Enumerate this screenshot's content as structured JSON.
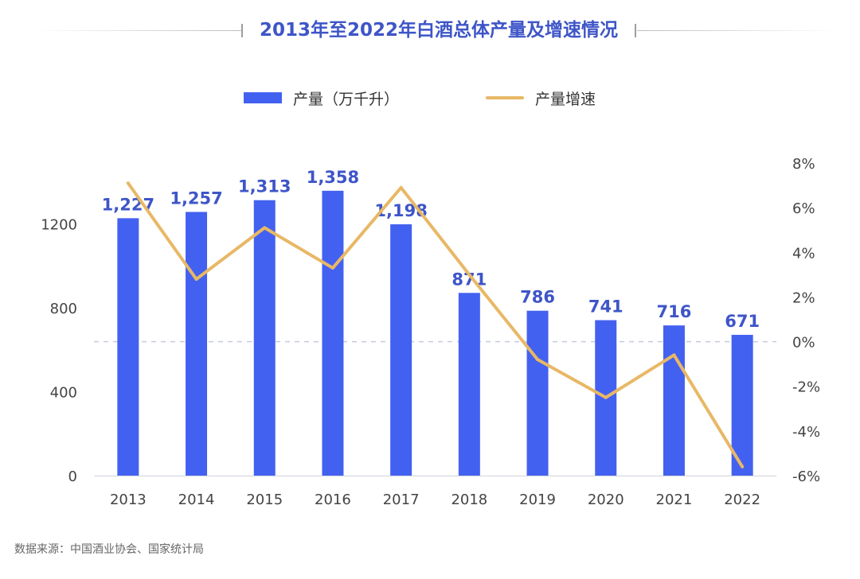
{
  "chart_data": {
    "type": "bar+line",
    "title": "2013年至2022年白酒总体产量及增速情况",
    "categories": [
      "2013",
      "2014",
      "2015",
      "2016",
      "2017",
      "2018",
      "2019",
      "2020",
      "2021",
      "2022"
    ],
    "series": [
      {
        "name": "产量（万千升）",
        "type": "bar",
        "axis": "left",
        "color": "#4361f0",
        "values": [
          1227,
          1257,
          1313,
          1358,
          1198,
          871,
          786,
          741,
          716,
          671
        ],
        "labels": [
          "1,227",
          "1,257",
          "1,313",
          "1,358",
          "1,198",
          "871",
          "786",
          "741",
          "716",
          "671"
        ]
      },
      {
        "name": "产量增速",
        "type": "line",
        "axis": "right",
        "color": "#e8b866",
        "values": [
          7.1,
          2.8,
          5.1,
          3.3,
          6.9,
          3.0,
          -0.8,
          -2.5,
          -0.6,
          -5.6
        ]
      }
    ],
    "y_left": {
      "ylim": [
        0,
        1500
      ],
      "ticks": [
        0,
        400,
        800,
        1200
      ],
      "tick_labels": [
        "0",
        "400",
        "800",
        "1200"
      ]
    },
    "y_right": {
      "ylim": [
        -6,
        8
      ],
      "ticks": [
        -6,
        -4,
        -2,
        0,
        2,
        4,
        6,
        8
      ],
      "tick_labels": [
        "-6%",
        "-4%",
        "-2%",
        "0%",
        "2%",
        "4%",
        "6%",
        "8%"
      ]
    },
    "reference_line": {
      "axis": "right",
      "value": 0,
      "style": "dashed"
    },
    "legend": {
      "placement": "top-center"
    },
    "source": "数据来源：中国酒业协会、国家统计局"
  }
}
